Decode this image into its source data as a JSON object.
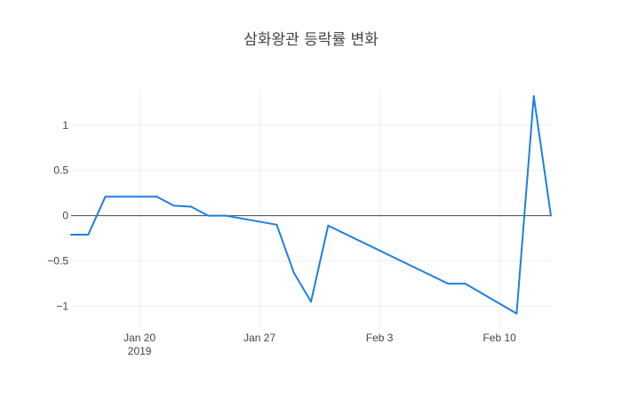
{
  "chart_data": {
    "type": "line",
    "title": "삼화왕관 등락률 변화",
    "xlabel": "",
    "ylabel": "",
    "x_range": [
      "2019-01-16",
      "2019-02-13"
    ],
    "ylim": [
      -1.25,
      1.4
    ],
    "grid": true,
    "zero_line": true,
    "x_ticks": [
      {
        "date": "2019-01-20",
        "label": "Jan 20",
        "sublabel": "2019"
      },
      {
        "date": "2019-01-27",
        "label": "Jan 27",
        "sublabel": ""
      },
      {
        "date": "2019-02-03",
        "label": "Feb 3",
        "sublabel": ""
      },
      {
        "date": "2019-02-10",
        "label": "Feb 10",
        "sublabel": ""
      }
    ],
    "y_ticks": [
      {
        "value": 1,
        "label": "1"
      },
      {
        "value": 0.5,
        "label": "0.5"
      },
      {
        "value": 0,
        "label": "0"
      },
      {
        "value": -0.5,
        "label": "−0.5"
      },
      {
        "value": -1,
        "label": "−1"
      }
    ],
    "series": [
      {
        "color": "#1f7fe0",
        "x": [
          "2019-01-16",
          "2019-01-17",
          "2019-01-18",
          "2019-01-21",
          "2019-01-22",
          "2019-01-23",
          "2019-01-24",
          "2019-01-25",
          "2019-01-28",
          "2019-01-29",
          "2019-01-30",
          "2019-01-31",
          "2019-02-07",
          "2019-02-08",
          "2019-02-11",
          "2019-02-12",
          "2019-02-13"
        ],
        "y": [
          -0.21,
          -0.21,
          0.21,
          0.21,
          0.11,
          0.1,
          0.0,
          0.0,
          -0.1,
          -0.63,
          -0.95,
          -0.11,
          -0.75,
          -0.75,
          -1.08,
          1.32,
          0.0
        ]
      }
    ]
  }
}
